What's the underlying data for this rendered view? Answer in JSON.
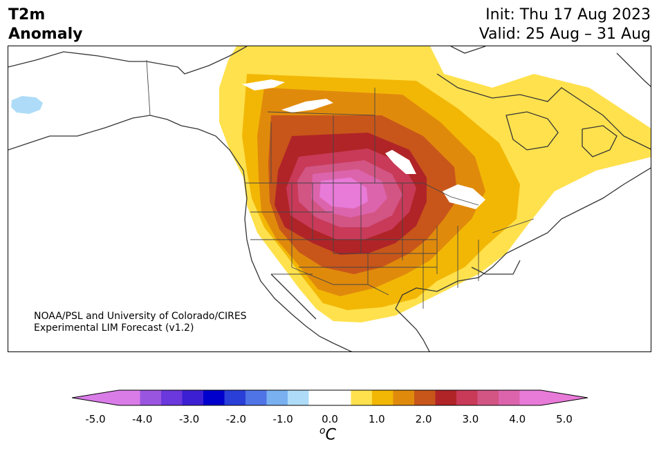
{
  "title": {
    "variable_line1": "T2m",
    "variable_line2": "Anomaly",
    "init": "Init: Thu 17 Aug 2023",
    "valid": "Valid: 25 Aug – 31 Aug"
  },
  "credit": {
    "line1": "NOAA/PSL and University of Colorado/CIRES",
    "line2": "Experimental LIM Forecast (v1.2)"
  },
  "colorbar": {
    "unit_prefix": "o",
    "unit": "C",
    "ticks": [
      "-5.0",
      "-4.0",
      "-3.0",
      "-2.0",
      "-1.0",
      "0.0",
      "1.0",
      "2.0",
      "3.0",
      "4.0",
      "5.0"
    ],
    "colors": [
      "#d97ce8",
      "#9a55e0",
      "#6a38dc",
      "#3c1fd3",
      "#0000cc",
      "#2a3ed8",
      "#4f74e6",
      "#78b0f0",
      "#aedcf8",
      "#ffffff",
      "#ffffff",
      "#ffe14d",
      "#f2b705",
      "#e08a0c",
      "#c8561a",
      "#b02428",
      "#c83a58",
      "#d25584",
      "#dc64ac",
      "#e87ad8"
    ],
    "under_color": "#d97ce8",
    "over_color": "#e87ad8"
  },
  "map": {
    "levels": {
      "l1": "#ffe14d",
      "l2": "#f2b705",
      "l3": "#e08a0c",
      "l4": "#c8561a",
      "l5": "#b02428",
      "l6": "#c83a58",
      "l7": "#d25584",
      "l8": "#dc64ac",
      "l9": "#e87ad8",
      "cold": "#aedcf8"
    }
  }
}
